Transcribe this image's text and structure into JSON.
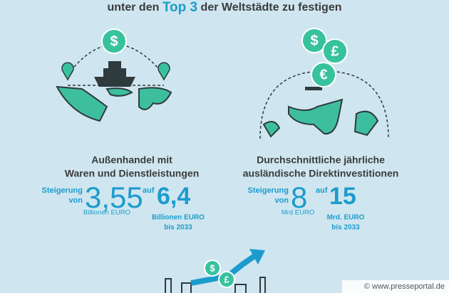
{
  "title": {
    "before": "unter den ",
    "highlight": "Top 3",
    "after": " der Weltstädte zu festigen"
  },
  "icons": {
    "dollar": "$",
    "pound": "£",
    "euro": "€"
  },
  "left": {
    "heading": [
      "Außenhandel mit",
      "Waren und Dienstleistungen"
    ],
    "increase": "Steigerung",
    "from": "von",
    "from_value": "3,55",
    "from_unit": "Billionen EURO",
    "to": "auf",
    "to_value": "6,4",
    "to_unit": "Billionen EURO",
    "year": "bis 2033"
  },
  "right": {
    "heading": [
      "Durchschnittliche jährliche",
      "ausländische Direktinvestitionen"
    ],
    "increase": "Steigerung",
    "from": "von",
    "from_value": "8",
    "from_unit": "Mrd EURO",
    "to": "auf",
    "to_value": "15",
    "to_unit": "Mrd. EURO",
    "year": "bis 2033"
  },
  "watermark": "© www.presseportal.de"
}
